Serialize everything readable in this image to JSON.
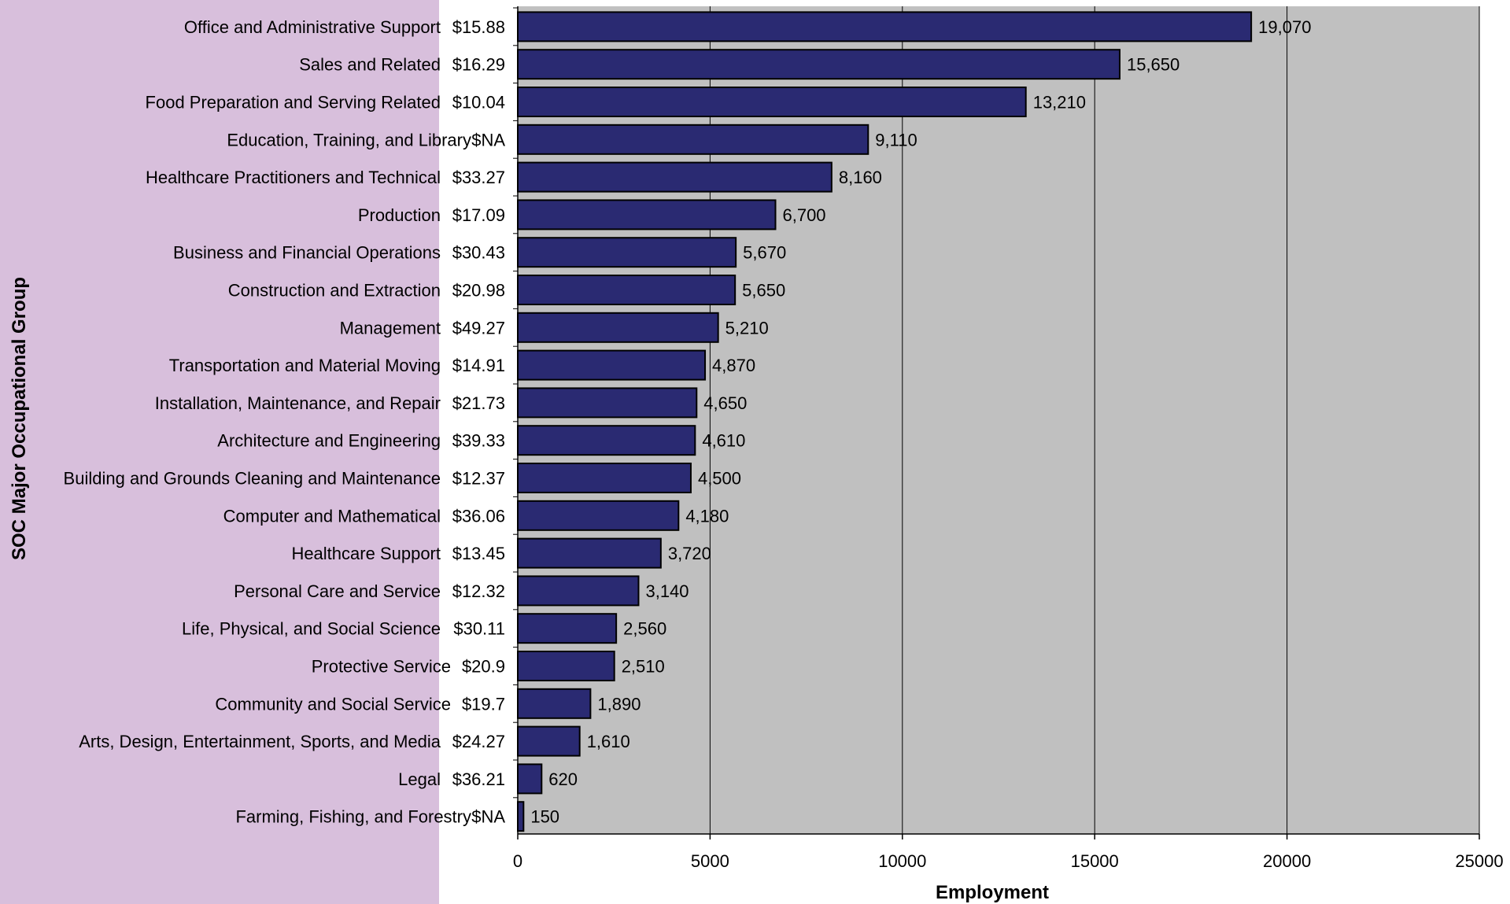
{
  "chart_data": {
    "type": "bar",
    "orientation": "horizontal",
    "xlabel": "Employment",
    "ylabel": "SOC Major Occupational Group",
    "xlim": [
      0,
      25000
    ],
    "xticks": [
      0,
      5000,
      10000,
      15000,
      20000,
      25000
    ],
    "grid": "vertical",
    "categories": [
      "Office and Administrative Support",
      "Sales and Related",
      "Food Preparation and Serving Related",
      "Education, Training, and Library",
      "Healthcare Practitioners and Technical",
      "Production",
      "Business and Financial Operations",
      "Construction and Extraction",
      "Management",
      "Transportation and Material Moving",
      "Installation, Maintenance, and Repair",
      "Architecture and Engineering",
      "Building and Grounds Cleaning and Maintenance",
      "Computer and Mathematical",
      "Healthcare Support",
      "Personal Care and Service",
      "Life, Physical, and Social Science",
      "Protective Service",
      "Community and Social Service",
      "Arts, Design, Entertainment, Sports, and Media",
      "Legal",
      "Farming, Fishing, and Forestry"
    ],
    "wages": [
      "$15.88",
      "$16.29",
      "$10.04",
      "$NA",
      "$33.27",
      "$17.09",
      "$30.43",
      "$20.98",
      "$49.27",
      "$14.91",
      "$21.73",
      "$39.33",
      "$12.37",
      "$36.06",
      "$13.45",
      "$12.32",
      "$30.11",
      "$20.9",
      "$19.7",
      "$24.27",
      "$36.21",
      "$NA"
    ],
    "values": [
      19070,
      15650,
      13210,
      9110,
      8160,
      6700,
      5670,
      5650,
      5210,
      4870,
      4650,
      4610,
      4500,
      4180,
      3720,
      3140,
      2560,
      2510,
      1890,
      1610,
      620,
      150
    ],
    "value_labels": [
      "19,070",
      "15,650",
      "13,210",
      "9,110",
      "8,160",
      "6,700",
      "5,670",
      "5,650",
      "5,210",
      "4,870",
      "4,650",
      "4,610",
      "4,500",
      "4,180",
      "3,720",
      "3,140",
      "2,560",
      "2,510",
      "1,890",
      "1,610",
      "620",
      "150"
    ],
    "colors": {
      "bar_fill": "#2a2a72",
      "bar_stroke": "#000000",
      "plot_background": "#c0c0c0",
      "label_panel_background": "#d8bfdc",
      "gridline": "#000000"
    }
  }
}
